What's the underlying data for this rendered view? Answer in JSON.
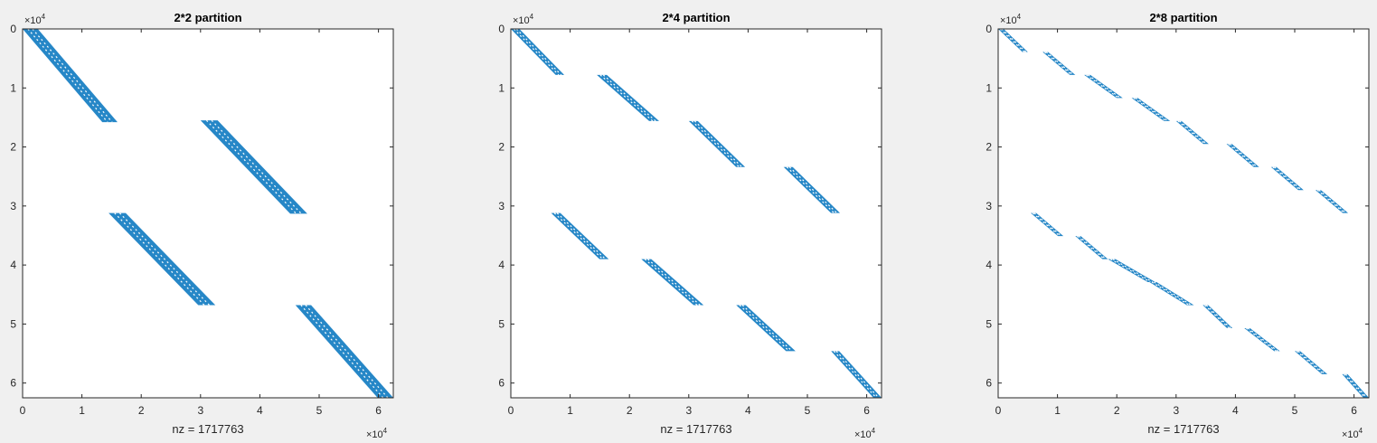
{
  "chart_data": [
    {
      "type": "scatter",
      "title": "2*2 partition",
      "xlabel": "nz = 1717763",
      "x_exponent_label": "×10",
      "x_exponent_power": "4",
      "y_exponent_label": "×10",
      "y_exponent_power": "4",
      "xlim": [
        0,
        6.25
      ],
      "ylim": [
        0,
        6.25
      ],
      "y_reversed": true,
      "xticks": [
        "0",
        "1",
        "2",
        "3",
        "4",
        "5",
        "6"
      ],
      "yticks": [
        "0",
        "1",
        "2",
        "3",
        "4",
        "5",
        "6"
      ],
      "color": "#0072bd",
      "blocks": [
        {
          "x": [
            0,
            1.6
          ],
          "y": [
            0,
            1.58
          ]
        },
        {
          "x": [
            3.0,
            4.8
          ],
          "y": [
            1.55,
            3.13
          ]
        },
        {
          "x": [
            1.45,
            3.25
          ],
          "y": [
            3.12,
            4.68
          ]
        },
        {
          "x": [
            4.6,
            6.25
          ],
          "y": [
            4.68,
            6.25
          ]
        }
      ]
    },
    {
      "type": "scatter",
      "title": "2*4 partition",
      "xlabel": "nz = 1717763",
      "x_exponent_label": "×10",
      "x_exponent_power": "4",
      "y_exponent_label": "×10",
      "y_exponent_power": "4",
      "xlim": [
        0,
        6.25
      ],
      "ylim": [
        0,
        6.25
      ],
      "y_reversed": true,
      "xticks": [
        "0",
        "1",
        "2",
        "3",
        "4",
        "5",
        "6"
      ],
      "yticks": [
        "0",
        "1",
        "2",
        "3",
        "4",
        "5",
        "6"
      ],
      "color": "#0072bd",
      "blocks": [
        {
          "x": [
            0,
            0.9
          ],
          "y": [
            0,
            0.78
          ]
        },
        {
          "x": [
            1.45,
            2.5
          ],
          "y": [
            0.78,
            1.56
          ]
        },
        {
          "x": [
            3.0,
            3.95
          ],
          "y": [
            1.56,
            2.34
          ]
        },
        {
          "x": [
            4.6,
            5.55
          ],
          "y": [
            2.34,
            3.12
          ]
        },
        {
          "x": [
            0.68,
            1.65
          ],
          "y": [
            3.12,
            3.9
          ]
        },
        {
          "x": [
            2.2,
            3.25
          ],
          "y": [
            3.9,
            4.68
          ]
        },
        {
          "x": [
            3.8,
            4.8
          ],
          "y": [
            4.68,
            5.46
          ]
        },
        {
          "x": [
            5.4,
            6.25
          ],
          "y": [
            5.46,
            6.25
          ]
        }
      ]
    },
    {
      "type": "scatter",
      "title": "2*8 partition",
      "xlabel": "nz = 1717763",
      "x_exponent_label": "×10",
      "x_exponent_power": "4",
      "y_exponent_label": "×10",
      "y_exponent_power": "4",
      "xlim": [
        0,
        6.25
      ],
      "ylim": [
        0,
        6.25
      ],
      "y_reversed": true,
      "xticks": [
        "0",
        "1",
        "2",
        "3",
        "4",
        "5",
        "6"
      ],
      "yticks": [
        "0",
        "1",
        "2",
        "3",
        "4",
        "5",
        "6"
      ],
      "color": "#0072bd",
      "blocks": [
        {
          "x": [
            0,
            0.5
          ],
          "y": [
            0,
            0.39
          ]
        },
        {
          "x": [
            0.75,
            1.3
          ],
          "y": [
            0.39,
            0.78
          ]
        },
        {
          "x": [
            1.45,
            2.1
          ],
          "y": [
            0.78,
            1.17
          ]
        },
        {
          "x": [
            2.25,
            2.9
          ],
          "y": [
            1.17,
            1.56
          ]
        },
        {
          "x": [
            3.0,
            3.55
          ],
          "y": [
            1.56,
            1.95
          ]
        },
        {
          "x": [
            3.85,
            4.4
          ],
          "y": [
            1.95,
            2.34
          ]
        },
        {
          "x": [
            4.6,
            5.15
          ],
          "y": [
            2.34,
            2.73
          ]
        },
        {
          "x": [
            5.35,
            5.9
          ],
          "y": [
            2.73,
            3.12
          ]
        },
        {
          "x": [
            0.55,
            1.1
          ],
          "y": [
            3.12,
            3.51
          ]
        },
        {
          "x": [
            1.3,
            1.85
          ],
          "y": [
            3.51,
            3.9
          ]
        },
        {
          "x": [
            1.85,
            2.65
          ],
          "y": [
            3.9,
            4.29
          ]
        },
        {
          "x": [
            2.55,
            3.3
          ],
          "y": [
            4.29,
            4.68
          ]
        },
        {
          "x": [
            3.45,
            3.95
          ],
          "y": [
            4.68,
            5.07
          ]
        },
        {
          "x": [
            4.15,
            4.75
          ],
          "y": [
            5.07,
            5.46
          ]
        },
        {
          "x": [
            5.0,
            5.55
          ],
          "y": [
            5.46,
            5.85
          ]
        },
        {
          "x": [
            5.8,
            6.25
          ],
          "y": [
            5.85,
            6.25
          ]
        }
      ]
    }
  ]
}
